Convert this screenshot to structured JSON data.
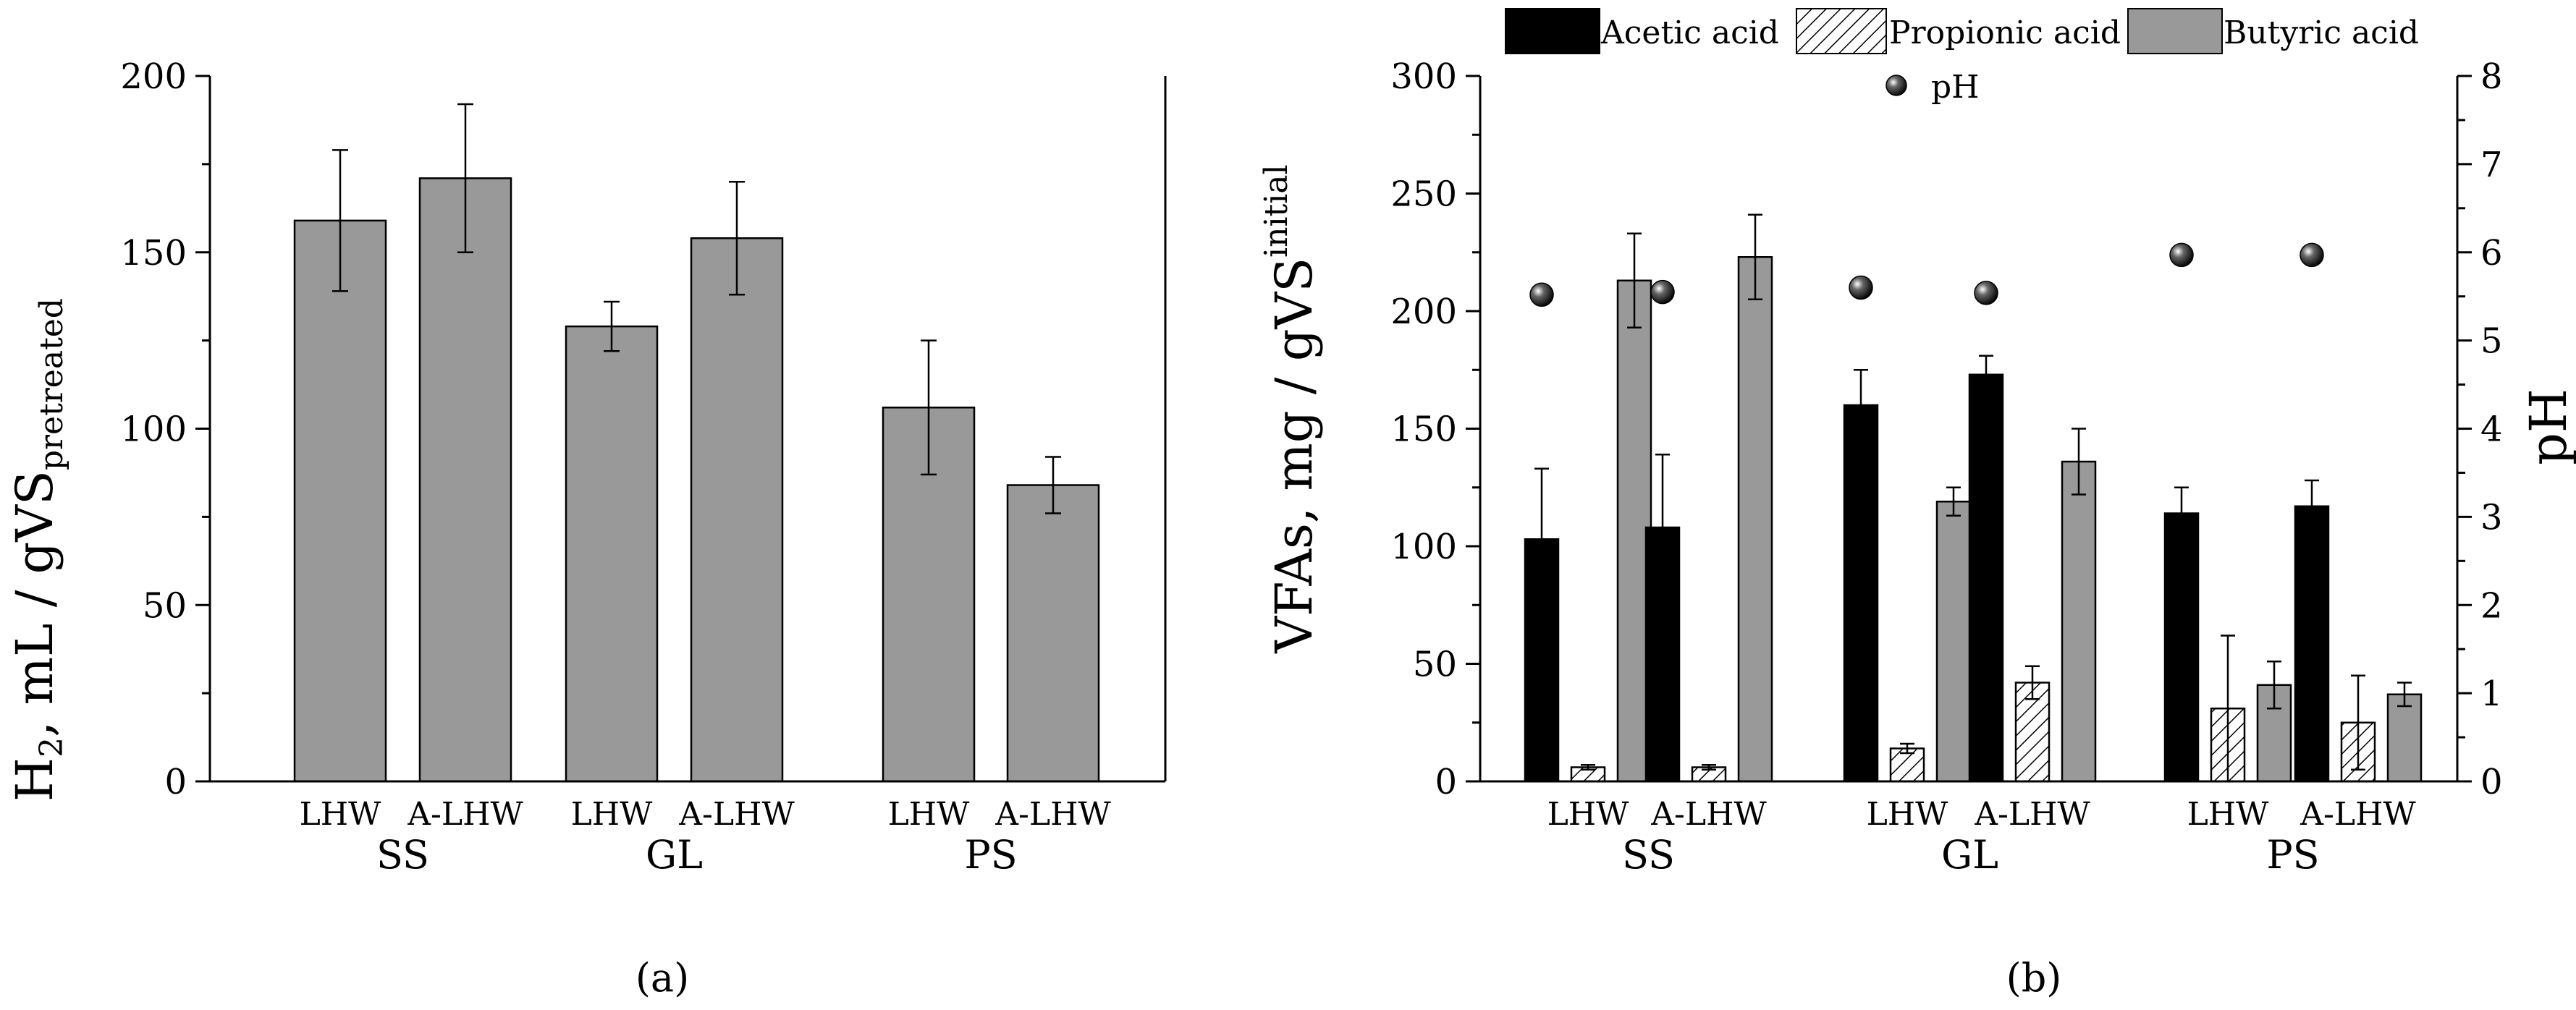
{
  "chart_data": [
    {
      "panel_label": "(a)",
      "type": "bar",
      "ylabel_main": "H",
      "ylabel_sub2": "2",
      "ylabel_rest": ", mL / gVS",
      "ylabel_sub": "pretreated",
      "ylim": [
        0,
        200
      ],
      "yticks": [
        "0",
        "50",
        "100",
        "150",
        "200"
      ],
      "groups": [
        {
          "name": "SS",
          "categories": [
            "LHW",
            "A-LHW"
          ]
        },
        {
          "name": "GL",
          "categories": [
            "LHW",
            "A-LHW"
          ]
        },
        {
          "name": "PS",
          "categories": [
            "LHW",
            "A-LHW"
          ]
        }
      ],
      "values": [
        159,
        171,
        129,
        154,
        106,
        84
      ],
      "errors": [
        20,
        21,
        7,
        16,
        19,
        8
      ],
      "bar_color": "#999999"
    },
    {
      "panel_label": "(b)",
      "type": "bar",
      "ylabel_left_main": "VFAs,  mg / gVS",
      "ylabel_left_sub": "initial",
      "ylabel_right": "pH",
      "ylim_left": [
        0,
        300
      ],
      "ylim_right": [
        0,
        8
      ],
      "yticks_left": [
        "0",
        "50",
        "100",
        "150",
        "200",
        "250",
        "300"
      ],
      "yticks_right": [
        "0",
        "1",
        "2",
        "3",
        "4",
        "5",
        "6",
        "7",
        "8"
      ],
      "groups": [
        {
          "name": "SS",
          "categories": [
            "LHW",
            "A-LHW"
          ]
        },
        {
          "name": "GL",
          "categories": [
            "LHW",
            "A-LHW"
          ]
        },
        {
          "name": "PS",
          "categories": [
            "LHW",
            "A-LHW"
          ]
        }
      ],
      "series": [
        {
          "name": "Acetic acid",
          "color": "#000000",
          "pattern": "solid",
          "values": [
            103,
            108,
            160,
            173,
            114,
            117
          ],
          "errors": [
            30,
            31,
            15,
            8,
            11,
            11
          ]
        },
        {
          "name": "Propionic acid",
          "color": "#ffffff",
          "pattern": "hatch",
          "values": [
            6,
            6,
            14,
            42,
            31,
            25
          ],
          "errors": [
            1,
            1,
            2,
            7,
            31,
            20
          ]
        },
        {
          "name": "Butyric acid",
          "color": "#999999",
          "pattern": "solid",
          "values": [
            213,
            223,
            119,
            136,
            41,
            37
          ],
          "errors": [
            20,
            18,
            6,
            14,
            10,
            5
          ]
        }
      ],
      "ph": {
        "name": "pH",
        "values": [
          5.52,
          5.55,
          5.6,
          5.54,
          5.97,
          5.97
        ]
      }
    }
  ]
}
